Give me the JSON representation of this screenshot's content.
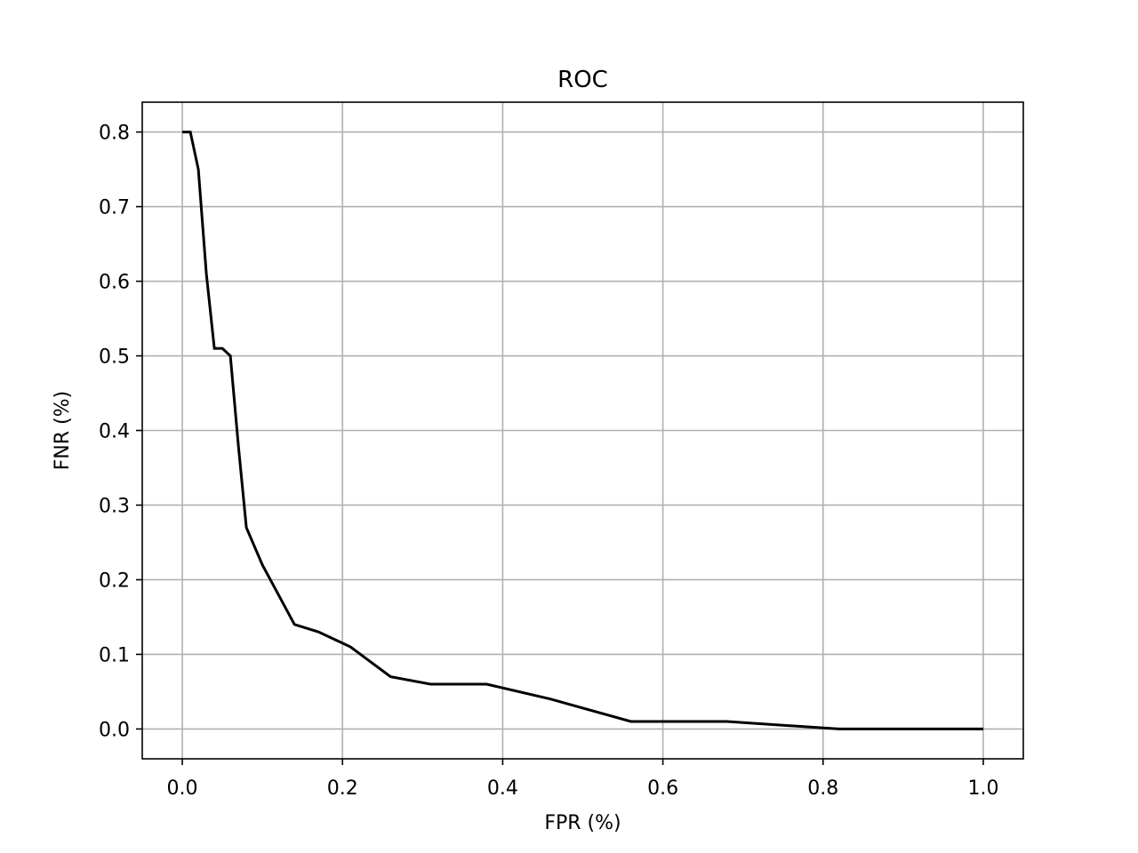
{
  "chart_data": {
    "type": "line",
    "title": "ROC",
    "xlabel": "FPR (%)",
    "ylabel": "FNR (%)",
    "xlim": [
      -0.05,
      1.05
    ],
    "ylim": [
      -0.04,
      0.84
    ],
    "xticks": [
      "0.0",
      "0.2",
      "0.4",
      "0.6",
      "0.8",
      "1.0"
    ],
    "yticks": [
      "0.0",
      "0.1",
      "0.2",
      "0.3",
      "0.4",
      "0.5",
      "0.6",
      "0.7",
      "0.8"
    ],
    "grid": true,
    "series": [
      {
        "color": "#000000",
        "x": [
          0.0,
          0.01,
          0.02,
          0.03,
          0.04,
          0.05,
          0.06,
          0.07,
          0.08,
          0.1,
          0.12,
          0.14,
          0.17,
          0.21,
          0.26,
          0.31,
          0.38,
          0.46,
          0.56,
          0.68,
          0.82,
          1.0
        ],
        "y": [
          0.8,
          0.8,
          0.75,
          0.61,
          0.51,
          0.51,
          0.5,
          0.38,
          0.27,
          0.22,
          0.18,
          0.14,
          0.13,
          0.11,
          0.07,
          0.06,
          0.06,
          0.04,
          0.01,
          0.01,
          0.0,
          0.0
        ]
      }
    ]
  }
}
